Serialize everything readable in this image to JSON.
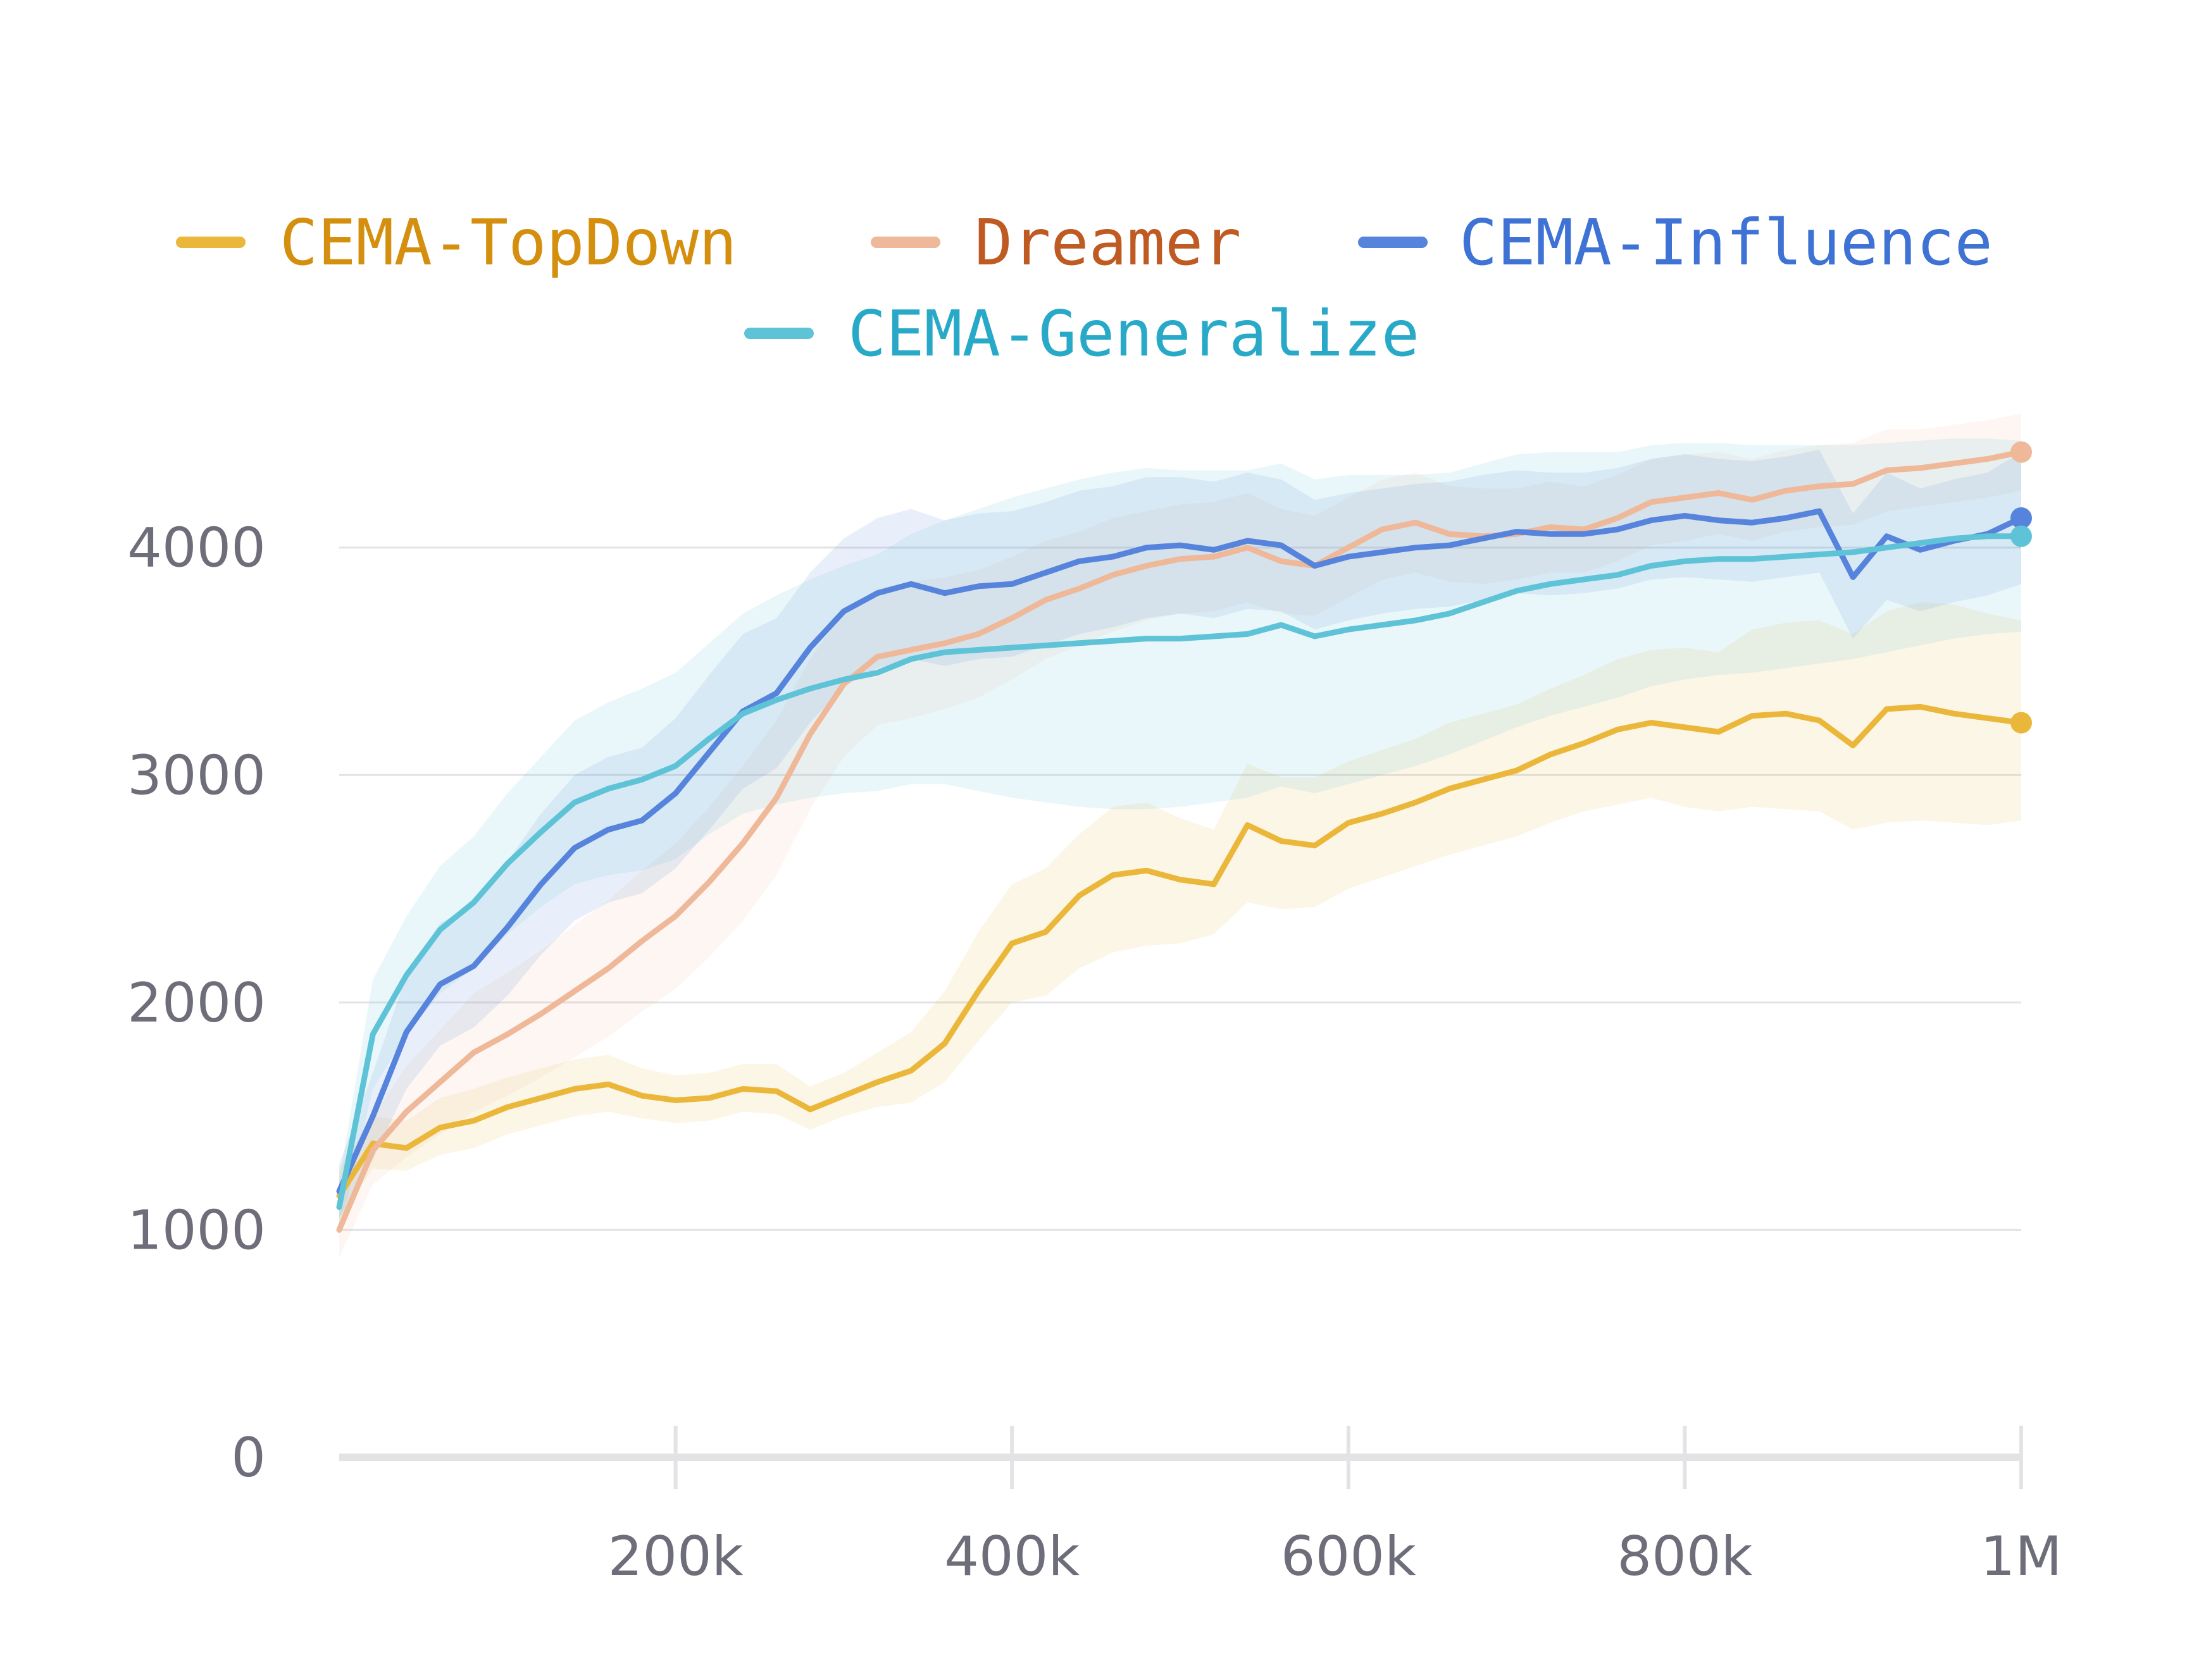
{
  "chart_data": {
    "type": "line",
    "title": "",
    "xlabel": "",
    "ylabel": "",
    "xlim": [
      0,
      1000000
    ],
    "ylim": [
      0,
      4600
    ],
    "x_ticks": [
      200000,
      400000,
      600000,
      800000,
      1000000
    ],
    "x_tick_labels": [
      "200k",
      "400k",
      "600k",
      "800k",
      "1M"
    ],
    "y_ticks": [
      0,
      1000,
      2000,
      3000,
      4000
    ],
    "y_tick_labels": [
      "0",
      "1000",
      "2000",
      "3000",
      "4000"
    ],
    "grid": "horizontal",
    "legend_position": "top-center",
    "x": [
      0,
      20000,
      40000,
      60000,
      80000,
      100000,
      120000,
      140000,
      160000,
      180000,
      200000,
      220000,
      240000,
      260000,
      280000,
      300000,
      320000,
      340000,
      360000,
      380000,
      400000,
      420000,
      440000,
      460000,
      480000,
      500000,
      520000,
      540000,
      560000,
      580000,
      600000,
      620000,
      640000,
      660000,
      680000,
      700000,
      720000,
      740000,
      760000,
      780000,
      800000,
      820000,
      840000,
      860000,
      880000,
      900000,
      920000,
      940000,
      960000,
      980000,
      1000000
    ],
    "series": [
      {
        "name": "CEMA-TopDown",
        "color": "#ebb73a",
        "label_color": "#d48f0f",
        "values": [
          1150,
          1380,
          1360,
          1450,
          1480,
          1540,
          1580,
          1620,
          1640,
          1590,
          1570,
          1580,
          1620,
          1610,
          1530,
          1590,
          1650,
          1700,
          1820,
          2050,
          2260,
          2310,
          2470,
          2560,
          2580,
          2540,
          2520,
          2780,
          2710,
          2690,
          2790,
          2830,
          2880,
          2940,
          2980,
          3020,
          3090,
          3140,
          3200,
          3230,
          3210,
          3190,
          3260,
          3270,
          3240,
          3130,
          3290,
          3300,
          3270,
          3250,
          3230
        ],
        "band_low": [
          1050,
          1270,
          1260,
          1330,
          1360,
          1420,
          1460,
          1500,
          1520,
          1490,
          1470,
          1480,
          1520,
          1510,
          1440,
          1500,
          1540,
          1560,
          1650,
          1830,
          2000,
          2030,
          2150,
          2220,
          2250,
          2260,
          2300,
          2440,
          2410,
          2420,
          2500,
          2550,
          2600,
          2650,
          2690,
          2730,
          2790,
          2840,
          2870,
          2900,
          2860,
          2840,
          2860,
          2850,
          2840,
          2760,
          2790,
          2800,
          2790,
          2780,
          2800
        ],
        "band_high": [
          1270,
          1500,
          1480,
          1580,
          1620,
          1670,
          1710,
          1750,
          1770,
          1710,
          1680,
          1690,
          1730,
          1730,
          1630,
          1690,
          1780,
          1870,
          2050,
          2310,
          2520,
          2590,
          2740,
          2860,
          2880,
          2810,
          2760,
          3050,
          2990,
          2990,
          3060,
          3110,
          3160,
          3230,
          3270,
          3310,
          3380,
          3440,
          3510,
          3550,
          3560,
          3540,
          3640,
          3670,
          3680,
          3620,
          3720,
          3760,
          3750,
          3710,
          3680
        ]
      },
      {
        "name": "Dreamer",
        "color": "#eeb899",
        "label_color": "#bf5b22",
        "values": [
          1000,
          1350,
          1520,
          1650,
          1780,
          1860,
          1950,
          2050,
          2150,
          2270,
          2380,
          2530,
          2700,
          2900,
          3180,
          3400,
          3520,
          3550,
          3580,
          3620,
          3690,
          3770,
          3820,
          3880,
          3920,
          3950,
          3960,
          4000,
          3940,
          3920,
          4000,
          4080,
          4110,
          4060,
          4050,
          4060,
          4090,
          4080,
          4130,
          4200,
          4220,
          4240,
          4210,
          4250,
          4270,
          4280,
          4340,
          4350,
          4370,
          4390,
          4420
        ],
        "band_low": [
          880,
          1200,
          1320,
          1420,
          1520,
          1590,
          1670,
          1760,
          1850,
          1960,
          2060,
          2200,
          2360,
          2560,
          2850,
          3080,
          3220,
          3250,
          3290,
          3340,
          3420,
          3510,
          3570,
          3630,
          3680,
          3710,
          3720,
          3760,
          3710,
          3700,
          3780,
          3860,
          3890,
          3850,
          3840,
          3860,
          3890,
          3890,
          3940,
          4010,
          4030,
          4060,
          4030,
          4070,
          4090,
          4100,
          4160,
          4180,
          4200,
          4220,
          4250
        ],
        "band_high": [
          1120,
          1500,
          1720,
          1880,
          2040,
          2130,
          2230,
          2340,
          2450,
          2580,
          2700,
          2860,
          3040,
          3240,
          3510,
          3720,
          3820,
          3850,
          3870,
          3900,
          3960,
          4030,
          4070,
          4130,
          4160,
          4190,
          4200,
          4240,
          4170,
          4140,
          4220,
          4300,
          4330,
          4270,
          4260,
          4260,
          4290,
          4270,
          4320,
          4390,
          4410,
          4420,
          4390,
          4430,
          4450,
          4460,
          4520,
          4520,
          4540,
          4560,
          4590
        ]
      },
      {
        "name": "CEMA-Influence",
        "color": "#5683dc",
        "label_color": "#3e72d4",
        "values": [
          1170,
          1500,
          1870,
          2080,
          2160,
          2330,
          2520,
          2680,
          2760,
          2800,
          2920,
          3100,
          3280,
          3360,
          3560,
          3720,
          3800,
          3840,
          3800,
          3830,
          3840,
          3890,
          3940,
          3960,
          4000,
          4010,
          3990,
          4030,
          4010,
          3920,
          3960,
          3980,
          4000,
          4010,
          4040,
          4070,
          4060,
          4060,
          4080,
          4120,
          4140,
          4120,
          4110,
          4130,
          4160,
          3870,
          4050,
          3990,
          4030,
          4060,
          4130
        ],
        "band_low": [
          1050,
          1310,
          1620,
          1810,
          1890,
          2030,
          2210,
          2360,
          2440,
          2480,
          2590,
          2760,
          2940,
          3030,
          3230,
          3390,
          3470,
          3510,
          3480,
          3510,
          3520,
          3570,
          3620,
          3650,
          3690,
          3710,
          3690,
          3730,
          3720,
          3640,
          3680,
          3710,
          3730,
          3740,
          3770,
          3800,
          3790,
          3800,
          3820,
          3860,
          3870,
          3860,
          3850,
          3870,
          3890,
          3600,
          3770,
          3720,
          3760,
          3790,
          3840
        ],
        "band_high": [
          1290,
          1690,
          2120,
          2350,
          2430,
          2620,
          2830,
          3000,
          3080,
          3120,
          3250,
          3440,
          3620,
          3690,
          3890,
          4040,
          4130,
          4170,
          4120,
          4150,
          4160,
          4200,
          4250,
          4270,
          4310,
          4310,
          4290,
          4330,
          4300,
          4210,
          4240,
          4260,
          4280,
          4290,
          4320,
          4340,
          4330,
          4330,
          4350,
          4390,
          4410,
          4390,
          4380,
          4400,
          4430,
          4150,
          4330,
          4260,
          4300,
          4330,
          4420
        ]
      },
      {
        "name": "CEMA-Generalize",
        "color": "#5fc3d7",
        "label_color": "#29a9c8",
        "values": [
          1100,
          1860,
          2120,
          2320,
          2440,
          2610,
          2750,
          2880,
          2940,
          2980,
          3040,
          3160,
          3270,
          3330,
          3380,
          3420,
          3450,
          3510,
          3540,
          3550,
          3560,
          3570,
          3580,
          3590,
          3600,
          3600,
          3610,
          3620,
          3660,
          3610,
          3640,
          3660,
          3680,
          3710,
          3760,
          3810,
          3840,
          3860,
          3880,
          3920,
          3940,
          3950,
          3950,
          3960,
          3970,
          3980,
          4000,
          4020,
          4040,
          4050,
          4050
        ],
        "band_low": [
          980,
          1620,
          1860,
          2040,
          2150,
          2300,
          2420,
          2520,
          2560,
          2580,
          2630,
          2740,
          2830,
          2870,
          2900,
          2920,
          2930,
          2960,
          2960,
          2930,
          2900,
          2880,
          2860,
          2850,
          2850,
          2860,
          2880,
          2900,
          2950,
          2920,
          2960,
          3000,
          3040,
          3090,
          3150,
          3210,
          3260,
          3300,
          3340,
          3390,
          3420,
          3440,
          3450,
          3470,
          3490,
          3510,
          3540,
          3570,
          3600,
          3620,
          3630
        ],
        "band_high": [
          1220,
          2100,
          2380,
          2600,
          2730,
          2920,
          3080,
          3240,
          3320,
          3380,
          3450,
          3580,
          3710,
          3790,
          3860,
          3920,
          3970,
          4060,
          4120,
          4170,
          4220,
          4260,
          4300,
          4330,
          4350,
          4340,
          4340,
          4340,
          4370,
          4300,
          4320,
          4320,
          4320,
          4330,
          4370,
          4410,
          4420,
          4420,
          4420,
          4450,
          4460,
          4460,
          4450,
          4450,
          4450,
          4450,
          4460,
          4470,
          4480,
          4480,
          4470
        ]
      }
    ]
  }
}
